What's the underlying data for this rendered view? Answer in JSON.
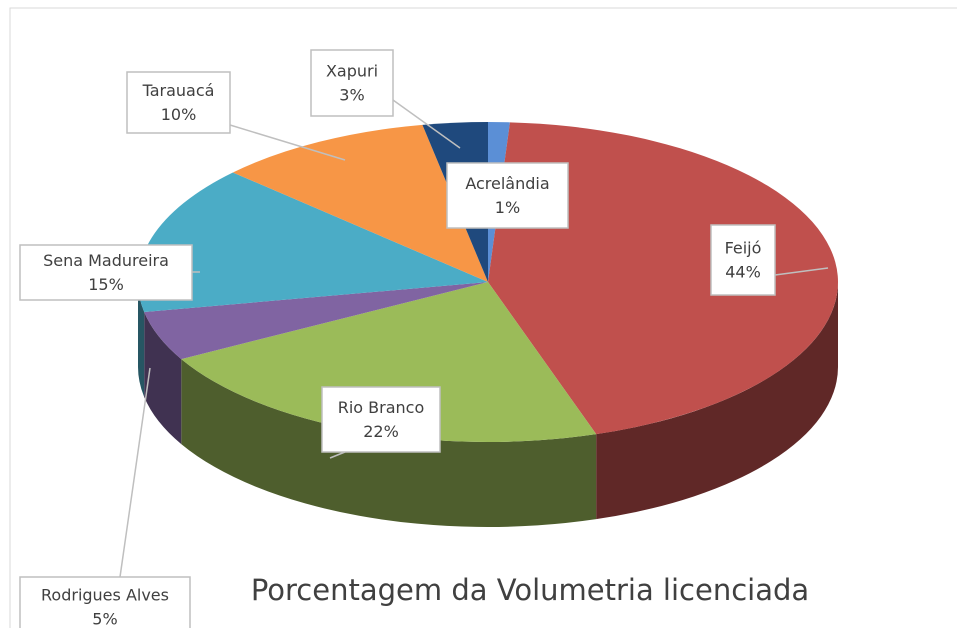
{
  "chart_data": {
    "type": "pie",
    "title": "Porcentagem da Volumetria licenciada",
    "categories": [
      "Acrelândia",
      "Feijó",
      "Rio Branco",
      "Rodrigues Alves",
      "Sena Madureira",
      "Tarauacá",
      "Xapuri"
    ],
    "values": [
      1,
      44,
      22,
      5,
      15,
      10,
      3
    ],
    "value_labels": [
      "1%",
      "44%",
      "22%",
      "5%",
      "15%",
      "10%",
      "3%"
    ],
    "colors": [
      "#5b8fd6",
      "#c0504d",
      "#9bbb59",
      "#8064a2",
      "#4bacc6",
      "#f79646",
      "#1f497d"
    ]
  }
}
